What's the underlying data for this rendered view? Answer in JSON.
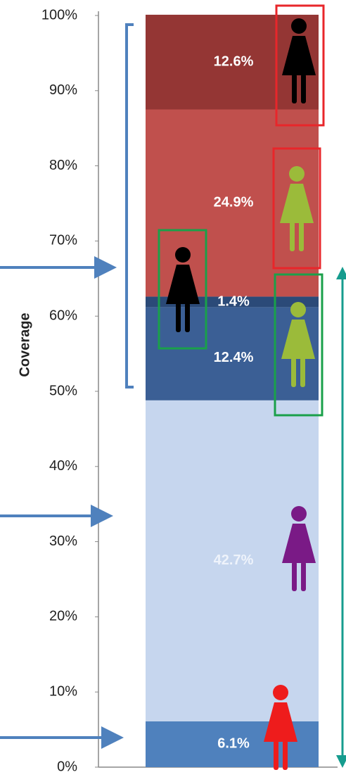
{
  "chart_data": {
    "type": "stacked_bar",
    "y_label": "Coverage",
    "values": [
      6.1,
      42.7,
      12.4,
      1.4,
      24.9,
      12.6
    ],
    "value_labels": [
      "6.1%",
      "42.7%",
      "12.4%",
      "1.4%",
      "24.9%",
      "12.6%"
    ],
    "colors": [
      "#4f81bd",
      "#c6d6ee",
      "#3b5f95",
      "#2b4a78",
      "#c0504d",
      "#943634"
    ],
    "ylim": [
      0,
      100
    ],
    "yticks": [
      {
        "value": 0,
        "label": "0%"
      },
      {
        "value": 10,
        "label": "10%"
      },
      {
        "value": 20,
        "label": "20%"
      },
      {
        "value": 30,
        "label": "30%"
      },
      {
        "value": 40,
        "label": "40%"
      },
      {
        "value": 50,
        "label": "50%"
      },
      {
        "value": 60,
        "label": "60%"
      },
      {
        "value": 70,
        "label": "70%"
      },
      {
        "value": 80,
        "label": "80%"
      },
      {
        "value": 90,
        "label": "90%"
      },
      {
        "value": 100,
        "label": "100%"
      }
    ]
  }
}
